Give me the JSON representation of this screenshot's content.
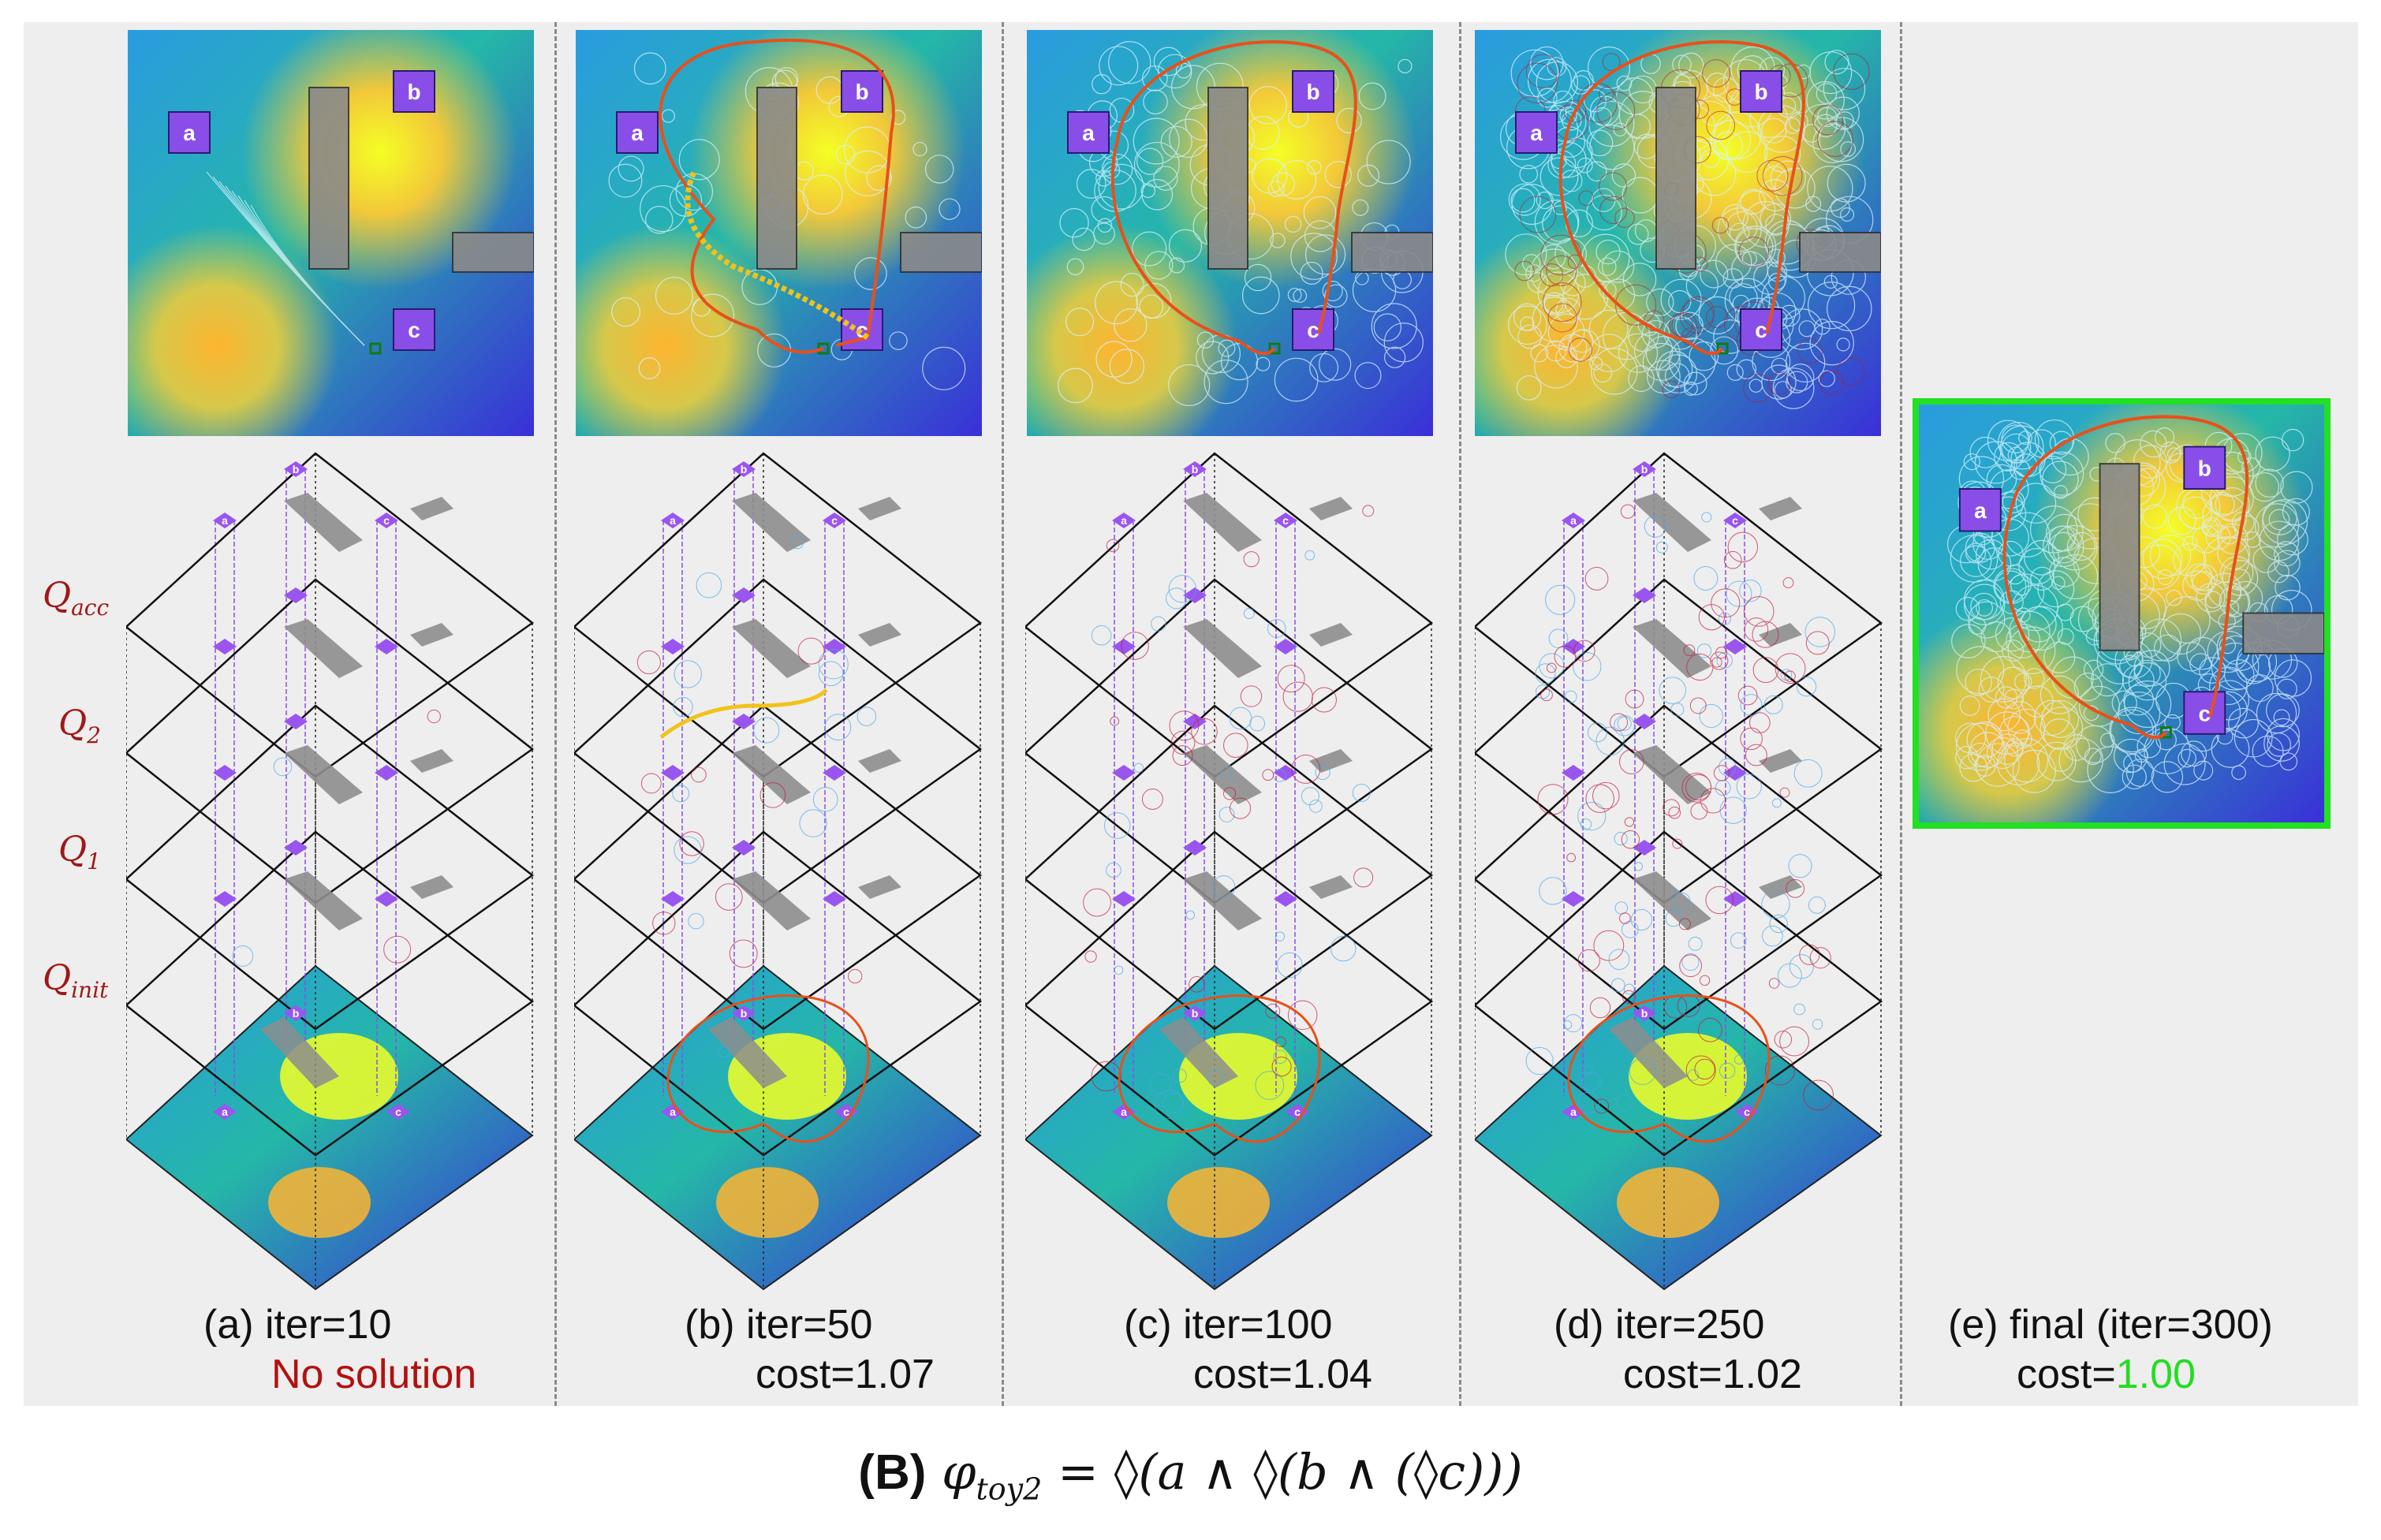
{
  "panels": [
    {
      "id": "a",
      "label": "(a) iter=10",
      "status": "No solution",
      "status_type": "none",
      "cost_prefix": "",
      "cost_value": "",
      "solution": false
    },
    {
      "id": "b",
      "label": "(b) iter=50",
      "status": "cost=1.07",
      "status_type": "cost",
      "cost_prefix": "cost=",
      "cost_value": "1.07",
      "solution": true
    },
    {
      "id": "c",
      "label": "(c) iter=100",
      "status": "cost=1.04",
      "status_type": "cost",
      "cost_prefix": "cost=",
      "cost_value": "1.04",
      "solution": true
    },
    {
      "id": "d",
      "label": "(d) iter=250",
      "status": "cost=1.02",
      "status_type": "cost",
      "cost_prefix": "cost=",
      "cost_value": "1.02",
      "solution": true
    },
    {
      "id": "e",
      "label": "(e) final (iter=300)",
      "status": "cost=1.00",
      "status_type": "final",
      "cost_prefix": "cost=",
      "cost_value": "1.00",
      "solution": true
    }
  ],
  "region_labels": [
    "a",
    "b",
    "c"
  ],
  "layers": [
    {
      "name": "Q",
      "sub": "acc"
    },
    {
      "name": "Q",
      "sub": "2"
    },
    {
      "name": "Q",
      "sub": "1"
    },
    {
      "name": "Q",
      "sub": "init"
    }
  ],
  "caption": {
    "prefix": "(B)",
    "phi": "φ",
    "sub": "toy2",
    "formula": " = ◊(a ∧ ◊(b ∧ (◊c)))"
  },
  "colors": {
    "frame_final": "#22e022",
    "no_solution": "#b31010",
    "final_cost": "#22dd22",
    "path": "#e8501a",
    "layer_label": "#a01818"
  }
}
